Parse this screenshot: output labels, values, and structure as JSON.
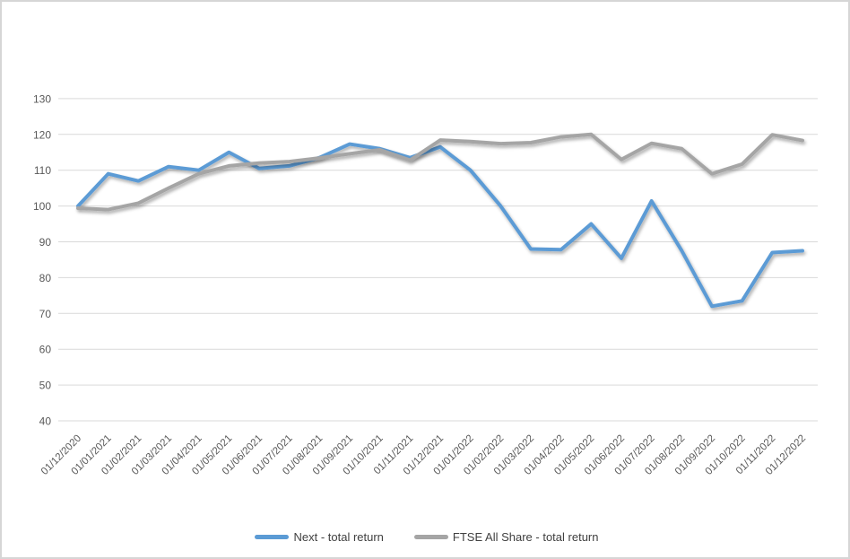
{
  "chart_data": {
    "type": "line",
    "title": "",
    "categories": [
      "01/12/2020",
      "01/01/2021",
      "01/02/2021",
      "01/03/2021",
      "01/04/2021",
      "01/05/2021",
      "01/06/2021",
      "01/07/2021",
      "01/08/2021",
      "01/09/2021",
      "01/10/2021",
      "01/11/2021",
      "01/12/2021",
      "01/01/2022",
      "01/02/2022",
      "01/03/2022",
      "01/04/2022",
      "01/05/2022",
      "01/06/2022",
      "01/07/2022",
      "01/08/2022",
      "01/09/2022",
      "01/10/2022",
      "01/11/2022",
      "01/12/2022"
    ],
    "series": [
      {
        "name": "Next - total return",
        "color": "#5B9BD5",
        "values": [
          100,
          109,
          107,
          111,
          110,
          115,
          110.5,
          111.2,
          113.5,
          117.3,
          116,
          113.5,
          116.5,
          110,
          100,
          88,
          87.8,
          95,
          85.4,
          101.4,
          87.5,
          72,
          73.5,
          87,
          87.5
        ]
      },
      {
        "name": "FTSE All Share - total return",
        "color": "#A5A5A5",
        "values": [
          99.4,
          99,
          100.8,
          105,
          109,
          111.2,
          112,
          112.4,
          113.4,
          114.6,
          115.7,
          112.8,
          118.4,
          118,
          117.4,
          117.7,
          119.3,
          120,
          113,
          117.5,
          116,
          109,
          111.7,
          119.9,
          118.3
        ]
      }
    ],
    "xlabel": "",
    "ylabel": "",
    "ylim": [
      40,
      130
    ],
    "yticks": [
      40,
      50,
      60,
      70,
      80,
      90,
      100,
      110,
      120,
      130
    ],
    "grid": "horizontal-only",
    "legend_position": "bottom-center"
  },
  "style": {
    "gridline_color": "#D9D9D9",
    "axis_text_color": "#595959",
    "legend_text_color": "#404040",
    "frame_border_color": "#D6D6D6",
    "background_color": "#FFFFFF"
  }
}
